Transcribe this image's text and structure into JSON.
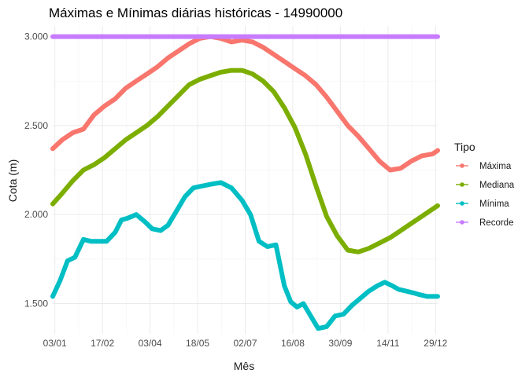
{
  "chart_data": {
    "type": "scatter",
    "title": "Máximas e Mínimas diárias históricas - 14990000",
    "xlabel": "Mês",
    "ylabel": "Cota (m)",
    "x_unit": "day_of_year",
    "xlim": [
      1,
      365
    ],
    "ylim": [
      1.33,
      3.06
    ],
    "x_ticks": [
      {
        "value": 3,
        "label": "03/01"
      },
      {
        "value": 48,
        "label": "17/02"
      },
      {
        "value": 93,
        "label": "03/04"
      },
      {
        "value": 138,
        "label": "18/05"
      },
      {
        "value": 183,
        "label": "02/07"
      },
      {
        "value": 228,
        "label": "16/08"
      },
      {
        "value": 273,
        "label": "30/09"
      },
      {
        "value": 318,
        "label": "14/11"
      },
      {
        "value": 363,
        "label": "29/12"
      }
    ],
    "y_ticks": [
      {
        "value": 1.5,
        "label": "1.500"
      },
      {
        "value": 2.0,
        "label": "2.000"
      },
      {
        "value": 2.5,
        "label": "2.500"
      },
      {
        "value": 3.0,
        "label": "3.000"
      }
    ],
    "grid": true,
    "legend": {
      "title": "Tipo",
      "position": "right"
    },
    "series": [
      {
        "name": "Máxima",
        "color": "#F8766D",
        "x": [
          1,
          10,
          20,
          30,
          40,
          50,
          60,
          70,
          80,
          90,
          100,
          110,
          120,
          130,
          140,
          150,
          160,
          170,
          180,
          190,
          200,
          210,
          220,
          230,
          240,
          250,
          260,
          270,
          280,
          290,
          300,
          310,
          320,
          330,
          340,
          350,
          360,
          365
        ],
        "values": [
          2.37,
          2.42,
          2.46,
          2.48,
          2.56,
          2.61,
          2.65,
          2.71,
          2.75,
          2.79,
          2.83,
          2.88,
          2.92,
          2.96,
          2.99,
          3.0,
          2.99,
          2.97,
          2.98,
          2.97,
          2.94,
          2.9,
          2.86,
          2.82,
          2.78,
          2.73,
          2.66,
          2.58,
          2.5,
          2.44,
          2.37,
          2.3,
          2.25,
          2.26,
          2.3,
          2.33,
          2.34,
          2.36
        ]
      },
      {
        "name": "Mediana",
        "color": "#7CAE00",
        "x": [
          1,
          10,
          20,
          30,
          40,
          50,
          60,
          70,
          80,
          90,
          100,
          110,
          120,
          130,
          140,
          150,
          160,
          170,
          180,
          190,
          200,
          210,
          220,
          230,
          240,
          250,
          260,
          270,
          280,
          290,
          300,
          310,
          320,
          330,
          340,
          350,
          360,
          365
        ],
        "values": [
          2.06,
          2.12,
          2.19,
          2.25,
          2.28,
          2.32,
          2.37,
          2.42,
          2.46,
          2.5,
          2.55,
          2.61,
          2.67,
          2.73,
          2.76,
          2.78,
          2.8,
          2.81,
          2.81,
          2.79,
          2.75,
          2.69,
          2.6,
          2.49,
          2.34,
          2.16,
          1.99,
          1.88,
          1.8,
          1.79,
          1.81,
          1.84,
          1.87,
          1.91,
          1.95,
          1.99,
          2.03,
          2.05
        ]
      },
      {
        "name": "Mínima",
        "color": "#00BFC4",
        "x": [
          1,
          8,
          15,
          22,
          30,
          37,
          44,
          52,
          60,
          66,
          72,
          80,
          88,
          95,
          103,
          110,
          118,
          126,
          134,
          142,
          150,
          160,
          170,
          180,
          188,
          196,
          204,
          212,
          220,
          226,
          232,
          238,
          244,
          252,
          260,
          268,
          276,
          284,
          292,
          300,
          308,
          315,
          322,
          328,
          335,
          342,
          348,
          355,
          360,
          365
        ],
        "values": [
          1.54,
          1.63,
          1.74,
          1.76,
          1.86,
          1.85,
          1.85,
          1.85,
          1.9,
          1.97,
          1.98,
          2.0,
          1.96,
          1.92,
          1.91,
          1.94,
          2.02,
          2.1,
          2.15,
          2.16,
          2.17,
          2.18,
          2.15,
          2.08,
          2.0,
          1.85,
          1.82,
          1.83,
          1.6,
          1.51,
          1.48,
          1.5,
          1.44,
          1.36,
          1.37,
          1.43,
          1.44,
          1.49,
          1.53,
          1.57,
          1.6,
          1.62,
          1.6,
          1.58,
          1.57,
          1.56,
          1.55,
          1.54,
          1.54,
          1.54
        ]
      },
      {
        "name": "Recorde",
        "color": "#C77CFF",
        "x": [
          1,
          365
        ],
        "values": [
          3.0,
          3.0
        ]
      }
    ]
  }
}
